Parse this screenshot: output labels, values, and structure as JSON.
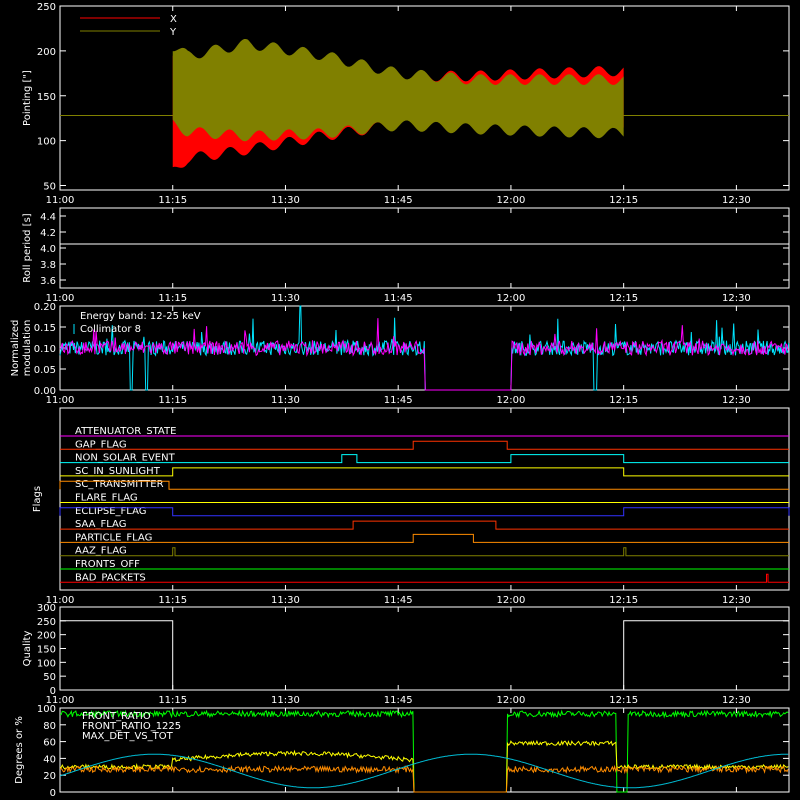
{
  "colors": {
    "bg": "#000000",
    "axis": "#ffffff",
    "x": "#ff0000",
    "y": "#808000",
    "energy": "#ffffff",
    "collimator": "#00e5ff",
    "magenta": "#ff00ff",
    "front_ratio": "#00ff00",
    "front_ratio_1225": "#ffff00",
    "max_det": "#ff8c00",
    "angle": "#00bcd4"
  },
  "time_axis": {
    "tick_labels": [
      "11:00",
      "11:15",
      "11:30",
      "11:45",
      "12:00",
      "12:15",
      "12:30"
    ],
    "range_minutes": [
      0,
      97
    ]
  },
  "chart_data": [
    {
      "id": "pointing",
      "type": "area",
      "ylabel": "Pointing [\"]",
      "ylim": [
        45,
        250
      ],
      "yticks": [
        50,
        100,
        150,
        200,
        250
      ],
      "reference_line": 128,
      "active_range_minutes": [
        15,
        75
      ],
      "legend": {
        "placement": "top-left",
        "entries": [
          {
            "label": "X",
            "color": "#ff0000"
          },
          {
            "label": "Y",
            "color": "#808000"
          }
        ]
      },
      "series": [
        {
          "name": "X",
          "color": "#ff0000",
          "points": [
            [
              15,
              65,
              200
            ],
            [
              17,
              80,
              190
            ],
            [
              25,
              90,
              190
            ],
            [
              35,
              105,
              180
            ],
            [
              45,
              118,
              172
            ],
            [
              55,
              122,
              172
            ],
            [
              65,
              118,
              175
            ],
            [
              75,
              118,
              178
            ]
          ]
        },
        {
          "name": "Y",
          "color": "#808000",
          "points": [
            [
              15,
              118,
              205
            ],
            [
              17,
              110,
              195
            ],
            [
              25,
              105,
              208
            ],
            [
              35,
              108,
              195
            ],
            [
              45,
              117,
              175
            ],
            [
              55,
              113,
              168
            ],
            [
              65,
              110,
              168
            ],
            [
              75,
              108,
              168
            ]
          ]
        }
      ]
    },
    {
      "id": "roll_period",
      "type": "line",
      "ylabel": "Roll period [s]",
      "ylim": [
        3.5,
        4.5
      ],
      "yticks": [
        3.6,
        3.8,
        4.0,
        4.2,
        4.4
      ],
      "series": [
        {
          "name": "",
          "x": [
            0,
            97
          ],
          "y": [
            4.05,
            4.05
          ]
        }
      ]
    },
    {
      "id": "modulation",
      "type": "line",
      "ylabel": "Normalized modulation",
      "ylim": [
        0,
        0.2
      ],
      "yticks": [
        0.0,
        0.05,
        0.1,
        0.15,
        0.2
      ],
      "annotations": [
        "Energy band: 12-25 keV",
        "Collimator 8"
      ],
      "legend": {
        "placement": "top-left"
      },
      "gap_minutes": [
        [
          48.5,
          60
        ]
      ],
      "series": [
        {
          "name": "Collimator 8",
          "color": "#00e5ff",
          "baseline": 0.1
        },
        {
          "name": "",
          "color": "#ff00ff",
          "baseline": 0.1
        }
      ]
    },
    {
      "id": "flags",
      "type": "line",
      "ylabel": "Flags",
      "flags": [
        {
          "label": "ATTENUATOR_STATE",
          "color": "#ff00ff",
          "on": []
        },
        {
          "label": "GAP_FLAG",
          "color": "#ff3300",
          "on": [
            [
              47,
              59.5
            ]
          ]
        },
        {
          "label": "NON_SOLAR_EVENT",
          "color": "#00ffff",
          "on": [
            [
              37.5,
              39.5
            ],
            [
              60,
              75
            ]
          ]
        },
        {
          "label": "SC_IN_SUNLIGHT",
          "color": "#ffff00",
          "on": [
            [
              15,
              75
            ]
          ]
        },
        {
          "label": "SC_TRANSMITTER",
          "color": "#ff8c00",
          "on": [
            [
              0,
              14.5
            ]
          ]
        },
        {
          "label": "FLARE_FLAG",
          "color": "#ffff00",
          "on": []
        },
        {
          "label": "ECLIPSE_FLAG",
          "color": "#3333ff",
          "on": [
            [
              0,
              15
            ],
            [
              75,
              97
            ]
          ]
        },
        {
          "label": "SAA_FLAG",
          "color": "#ff3300",
          "on": [
            [
              39,
              58
            ]
          ]
        },
        {
          "label": "PARTICLE_FLAG",
          "color": "#ff8c00",
          "on": [
            [
              47,
              55
            ]
          ]
        },
        {
          "label": "AAZ_FLAG",
          "color": "#808000",
          "on": [
            [
              15,
              15.3
            ],
            [
              75,
              75.3
            ]
          ]
        },
        {
          "label": "FRONTS_OFF",
          "color": "#00ff00",
          "on": []
        },
        {
          "label": "BAD_PACKETS",
          "color": "#ff0000",
          "on": [
            [
              94,
              94.2
            ]
          ]
        }
      ]
    },
    {
      "id": "quality",
      "type": "line",
      "ylabel": "Quality",
      "ylim": [
        0,
        300
      ],
      "yticks": [
        0,
        50,
        100,
        150,
        200,
        250,
        300
      ],
      "series": [
        {
          "name": "",
          "x": [
            0,
            15,
            15,
            75,
            75,
            97
          ],
          "y": [
            250,
            250,
            0,
            0,
            250,
            250
          ]
        }
      ]
    },
    {
      "id": "ratios",
      "type": "line",
      "ylabel": "Degrees or %",
      "ylim": [
        0,
        100
      ],
      "yticks": [
        0,
        20,
        40,
        60,
        80,
        100
      ],
      "legend": {
        "placement": "top-left"
      },
      "series": [
        {
          "name": "FRONT_RATIO",
          "color": "#00ff00",
          "baseline": 93
        },
        {
          "name": "FRONT_RATIO_1225",
          "color": "#ffff00",
          "baseline": 32
        },
        {
          "name": "MAX_DET_VS_TOT",
          "color": "#ff8c00",
          "baseline": 27
        },
        {
          "name": "",
          "color": "#00bcd4",
          "baseline": 25
        }
      ]
    }
  ]
}
